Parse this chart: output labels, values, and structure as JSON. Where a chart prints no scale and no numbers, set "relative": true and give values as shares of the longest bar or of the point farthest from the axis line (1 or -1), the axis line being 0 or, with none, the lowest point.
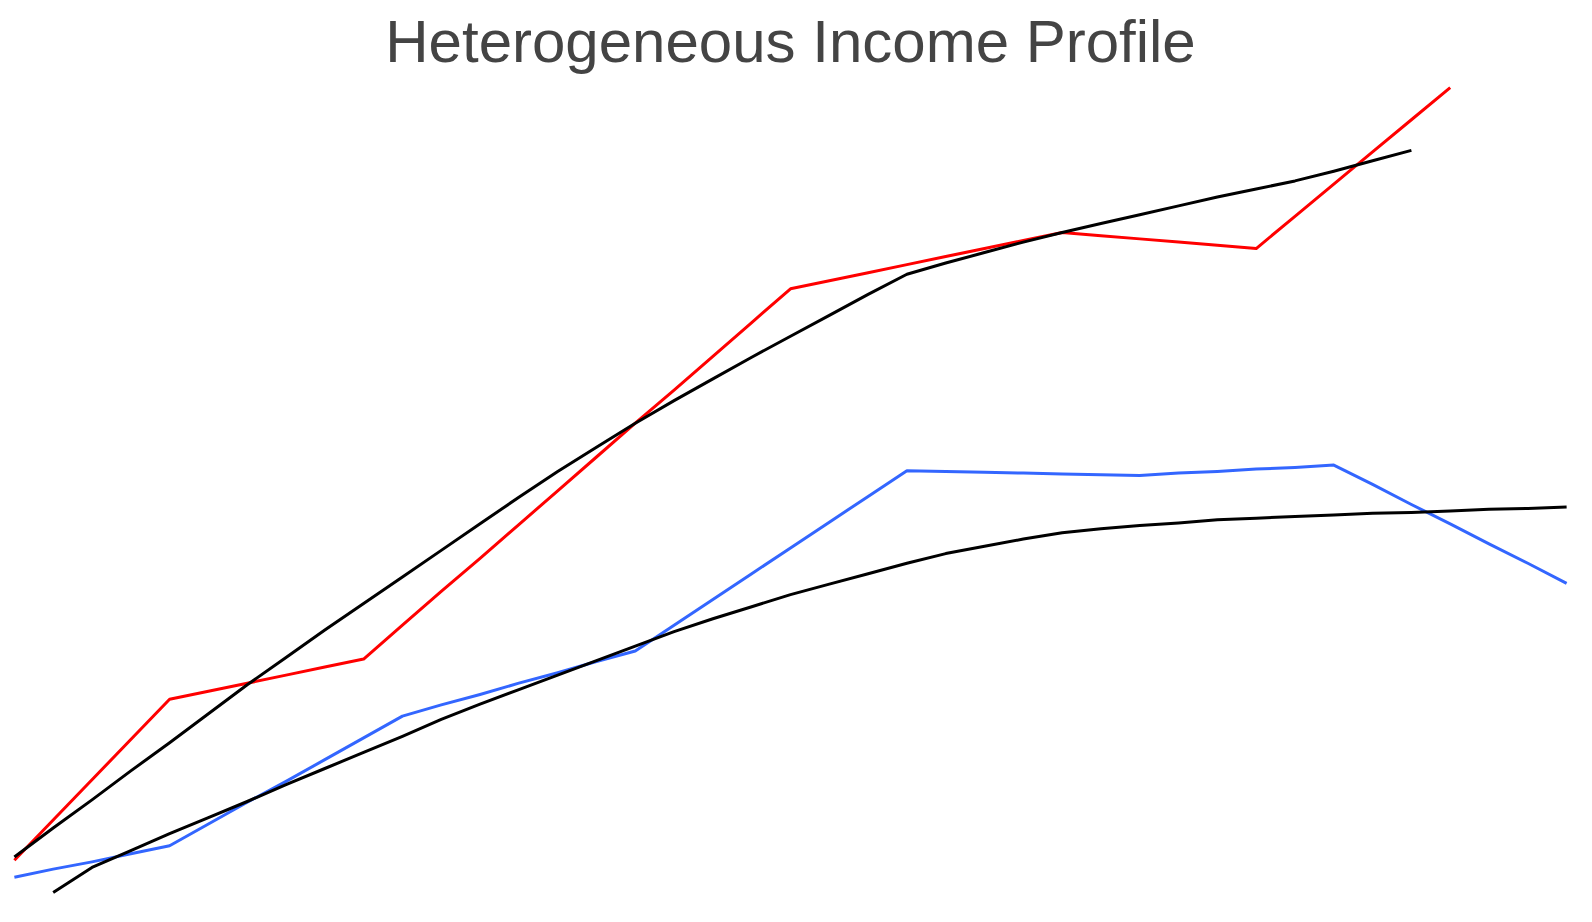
{
  "chart_data": {
    "type": "line",
    "title": "Heterogeneous Income Profile",
    "relative": true,
    "tick_labels": false,
    "grid": false,
    "marker": "none",
    "line_style": "solid",
    "categories": [
      null,
      null,
      null,
      null,
      null,
      null,
      null,
      null,
      null,
      null,
      null,
      null,
      null,
      null,
      null,
      null,
      null,
      null,
      null,
      null,
      null,
      null,
      null,
      null,
      null,
      null,
      null,
      null,
      null,
      null,
      null,
      null,
      null,
      null,
      null,
      null,
      null,
      null,
      null,
      null,
      null
    ],
    "series": [
      {
        "color": "#ff0000",
        "values": [
          0.04,
          0.09,
          0.14,
          0.19,
          0.24,
          0.25,
          0.26,
          0.27,
          0.28,
          0.29,
          0.332,
          0.374,
          0.415,
          0.457,
          0.499,
          0.541,
          0.583,
          0.624,
          0.666,
          0.708,
          0.75,
          0.76,
          0.77,
          0.78,
          0.79,
          0.8,
          0.81,
          0.82,
          0.816,
          0.812,
          0.808,
          0.804,
          0.8,
          0.84,
          0.88,
          0.92,
          0.96,
          1.0,
          null,
          null,
          null
        ]
      },
      {
        "color": "#3366ff",
        "values": [
          0.019,
          0.029,
          0.038,
          0.048,
          0.058,
          0.085,
          0.112,
          0.138,
          0.165,
          0.192,
          0.219,
          0.233,
          0.246,
          0.26,
          0.273,
          0.287,
          0.3,
          0.332,
          0.364,
          0.396,
          0.428,
          0.46,
          0.492,
          0.524,
          0.523,
          0.522,
          0.521,
          0.52,
          0.519,
          0.518,
          0.521,
          0.523,
          0.526,
          0.528,
          0.531,
          0.507,
          0.482,
          0.458,
          0.433,
          0.409,
          0.384
        ]
      },
      {
        "color": "#000000",
        "values": [
          0.044,
          0.08,
          0.115,
          0.151,
          0.186,
          0.222,
          0.258,
          0.292,
          0.326,
          0.359,
          0.392,
          0.425,
          0.458,
          0.491,
          0.523,
          0.553,
          0.583,
          0.611,
          0.638,
          0.665,
          0.691,
          0.717,
          0.743,
          0.768,
          0.782,
          0.795,
          0.808,
          0.82,
          0.831,
          0.842,
          0.853,
          0.864,
          0.874,
          0.884,
          0.896,
          0.909,
          0.922,
          null,
          null,
          null,
          null
        ]
      },
      {
        "color": "#000000",
        "values": [
          null,
          0.0,
          0.031,
          0.052,
          0.073,
          0.093,
          0.113,
          0.134,
          0.154,
          0.174,
          0.194,
          0.215,
          0.234,
          0.252,
          0.27,
          0.288,
          0.306,
          0.324,
          0.34,
          0.355,
          0.37,
          0.383,
          0.396,
          0.409,
          0.421,
          0.43,
          0.439,
          0.447,
          0.452,
          0.456,
          0.459,
          0.463,
          0.465,
          0.467,
          0.469,
          0.471,
          0.472,
          0.474,
          0.476,
          0.477,
          0.479
        ]
      }
    ]
  }
}
